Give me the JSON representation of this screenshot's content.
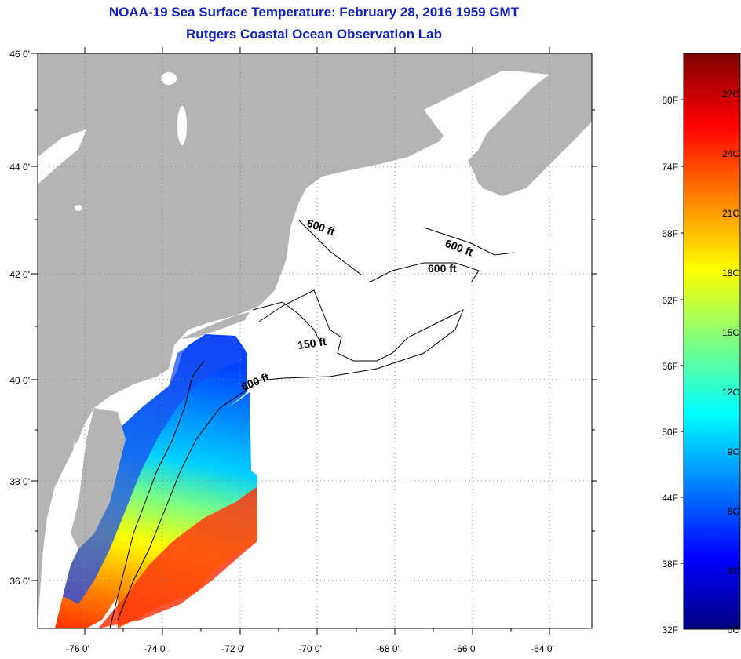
{
  "header": {
    "title": "NOAA-19 Sea Surface Temperature:  February 28, 2016 1959 GMT",
    "subtitle": "Rutgers Coastal Ocean Observation Lab"
  },
  "map": {
    "lat_labels": [
      "46 0'",
      "44 0'",
      "42 0'",
      "40 0'",
      "38 0'",
      "36 0'"
    ],
    "lon_labels": [
      "-76 0'",
      "-74 0'",
      "-72 0'",
      "-70 0'",
      "-68 0'",
      "-66 0'",
      "-64 0'"
    ],
    "contours": [
      "600 ft",
      "600 ft",
      "600 ft",
      "150 ft",
      "600 ft"
    ],
    "colors": {
      "land": "#b4b4b4",
      "ocean_nodata": "#ffffff",
      "grid": "#808080",
      "contour": "#000000"
    }
  },
  "colorbar": {
    "fahrenheit_labels": [
      "80F",
      "74F",
      "68F",
      "62F",
      "56F",
      "50F",
      "44F",
      "38F",
      "32F"
    ],
    "celsius_labels": [
      "27C",
      "24C",
      "21C",
      "18C",
      "15C",
      "12C",
      "9C",
      "6C",
      "3C",
      "0C"
    ],
    "gradient": [
      "#00007f",
      "#0000ff",
      "#0080ff",
      "#00ffff",
      "#80ff80",
      "#ffff00",
      "#ff8000",
      "#ff0000",
      "#7f0000"
    ]
  }
}
